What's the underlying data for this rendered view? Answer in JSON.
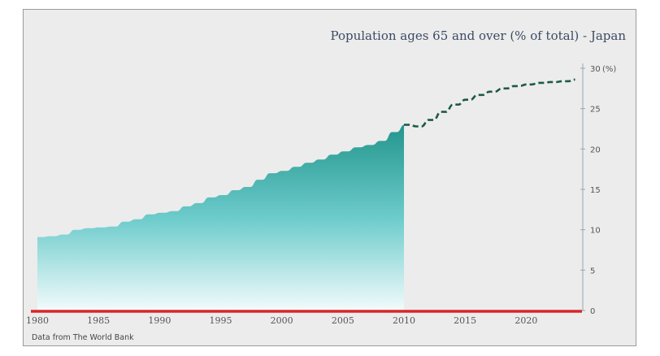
{
  "chart_data": {
    "type": "area",
    "title": "Population ages 65 and over (% of total) - Japan",
    "ylabel": "(%)",
    "source": "Data from The World Bank",
    "xlim": [
      1980,
      2024.5
    ],
    "ylim": [
      0,
      30
    ],
    "x_ticks": [
      1980,
      1985,
      1990,
      1995,
      2000,
      2005,
      2010,
      2015,
      2020
    ],
    "y_ticks": [
      0,
      5,
      10,
      15,
      20,
      25,
      30
    ],
    "series": [
      {
        "style": "filled-area",
        "x": [
          1980,
          1981,
          1982,
          1983,
          1984,
          1985,
          1986,
          1987,
          1988,
          1989,
          1990,
          1991,
          1992,
          1993,
          1994,
          1995,
          1996,
          1997,
          1998,
          1999,
          2000,
          2001,
          2002,
          2003,
          2004,
          2005,
          2006,
          2007,
          2008,
          2009,
          2010
        ],
        "y": [
          9.1,
          9.2,
          9.4,
          10.0,
          10.2,
          10.3,
          10.4,
          11.0,
          11.3,
          11.9,
          12.1,
          12.3,
          12.9,
          13.3,
          14.0,
          14.3,
          14.9,
          15.3,
          16.2,
          17.0,
          17.3,
          17.8,
          18.3,
          18.7,
          19.3,
          19.7,
          20.2,
          20.5,
          21.0,
          22.1,
          23.0
        ]
      },
      {
        "style": "dashed-projection",
        "x": [
          2010,
          2011,
          2012,
          2013,
          2014,
          2015,
          2016,
          2017,
          2018,
          2019,
          2020,
          2021,
          2022,
          2023,
          2024
        ],
        "y": [
          23.0,
          22.8,
          23.6,
          24.6,
          25.5,
          26.1,
          26.7,
          27.1,
          27.5,
          27.8,
          28.0,
          28.2,
          28.3,
          28.4,
          28.6
        ]
      }
    ],
    "colors": {
      "area_top": "#23958c",
      "area_mid": "#6ccbcb",
      "area_bottom": "#f2fbfc",
      "dashed_line": "#1d5a45",
      "baseline": "#d8262a",
      "grid": "#9aa5b5"
    }
  }
}
